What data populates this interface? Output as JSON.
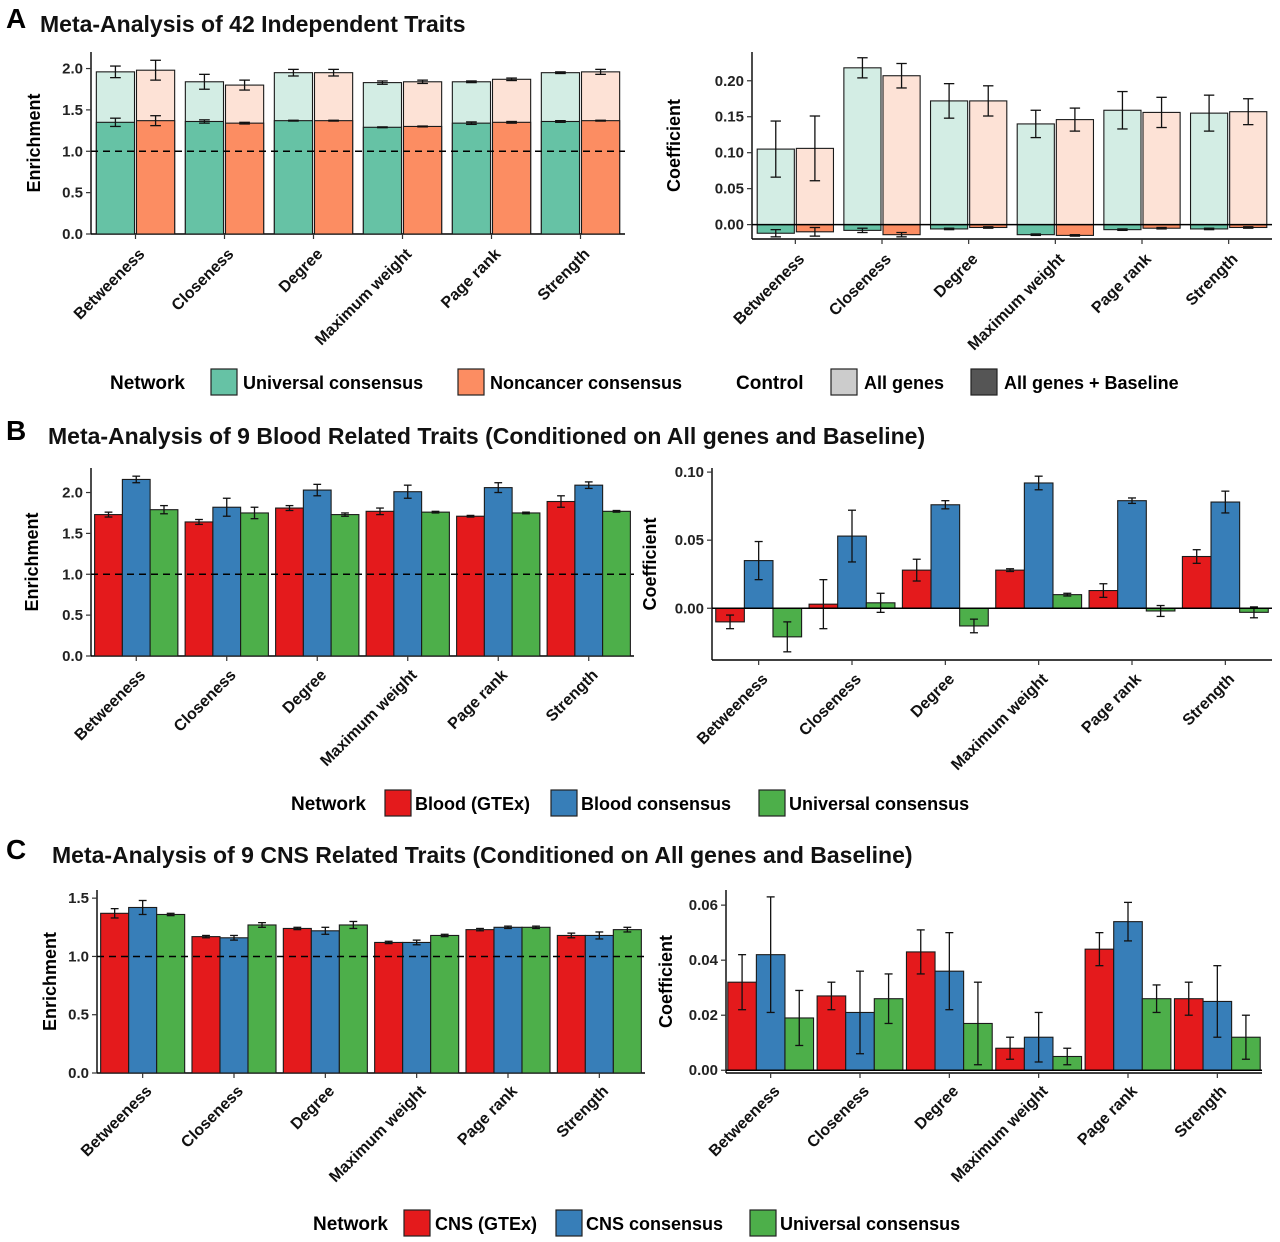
{
  "figure": {
    "panel_labels": [
      "A",
      "B",
      "C"
    ],
    "titles": {
      "A": "Meta-Analysis of 42 Independent Traits",
      "B": "Meta-Analysis of 9 Blood Related Traits (Conditioned on All genes and Baseline)",
      "C": "Meta-Analysis of 9 CNS Related Traits (Conditioned on All genes and Baseline)"
    }
  },
  "legends": {
    "A": {
      "network_title": "Network",
      "control_title": "Control",
      "network_items": [
        {
          "label": "Universal consensus",
          "color": "#66c2a5"
        },
        {
          "label": "Noncancer consensus",
          "color": "#fc8d62"
        }
      ],
      "control_items": [
        {
          "label": "All genes",
          "color": "#cccccc"
        },
        {
          "label": "All genes + Baseline",
          "color": "#555555"
        }
      ]
    },
    "B": {
      "title": "Network",
      "items": [
        {
          "label": "Blood (GTEx)",
          "color": "#e41a1c"
        },
        {
          "label": "Blood consensus",
          "color": "#377eb8"
        },
        {
          "label": "Universal consensus",
          "color": "#4daf4a"
        }
      ]
    },
    "C": {
      "title": "Network",
      "items": [
        {
          "label": "CNS (GTEx)",
          "color": "#e41a1c"
        },
        {
          "label": "CNS consensus",
          "color": "#377eb8"
        },
        {
          "label": "Universal consensus",
          "color": "#4daf4a"
        }
      ]
    }
  },
  "chart_data": [
    {
      "id": "A-left",
      "type": "bar",
      "title": "Meta-Analysis of 42 Independent Traits",
      "ylabel": "Enrichment",
      "xlabel": "",
      "ylim": [
        0,
        2.2
      ],
      "ticks": [
        0,
        0.5,
        1,
        1.5,
        2
      ],
      "tick_labels": [
        "0.0",
        "0.5",
        "1.0",
        "1.5",
        "2.0"
      ],
      "reference_line": 1,
      "layered": true,
      "categories": [
        "Betweeness",
        "Closeness",
        "Degree",
        "Maximum weight",
        "Page rank",
        "Strength"
      ],
      "series": [
        {
          "name": "Universal consensus",
          "color": "#66c2a5",
          "light": "#d3ede4",
          "all_genes": [
            1.96,
            1.84,
            1.95,
            1.83,
            1.84,
            1.95
          ],
          "all_genes_err": [
            0.07,
            0.09,
            0.04,
            0.02,
            0.01,
            0.01
          ],
          "baseline": [
            1.35,
            1.36,
            1.37,
            1.29,
            1.34,
            1.36
          ],
          "baseline_err": [
            0.05,
            0.02,
            0.005,
            0.005,
            0.015,
            0.01
          ]
        },
        {
          "name": "Noncancer consensus",
          "color": "#fc8d62",
          "light": "#fde2d6",
          "all_genes": [
            1.98,
            1.8,
            1.95,
            1.84,
            1.87,
            1.96
          ],
          "all_genes_err": [
            0.12,
            0.06,
            0.04,
            0.02,
            0.015,
            0.03
          ],
          "baseline": [
            1.37,
            1.34,
            1.37,
            1.3,
            1.35,
            1.37
          ],
          "baseline_err": [
            0.06,
            0.01,
            0.005,
            0.005,
            0.01,
            0.005
          ]
        }
      ]
    },
    {
      "id": "A-right",
      "type": "bar",
      "ylabel": "Coefficient",
      "xlabel": "",
      "ylim": [
        -0.02,
        0.24
      ],
      "ticks": [
        0,
        0.05,
        0.1,
        0.15,
        0.2
      ],
      "tick_labels": [
        "0.00",
        "0.05",
        "0.10",
        "0.15",
        "0.20"
      ],
      "reference_line": 0,
      "layered": true,
      "categories": [
        "Betweeness",
        "Closeness",
        "Degree",
        "Maximum weight",
        "Page rank",
        "Strength"
      ],
      "series": [
        {
          "name": "Universal consensus",
          "color": "#66c2a5",
          "light": "#d3ede4",
          "all_genes": [
            0.105,
            0.218,
            0.172,
            0.14,
            0.159,
            0.155
          ],
          "all_genes_err": [
            0.039,
            0.014,
            0.024,
            0.019,
            0.026,
            0.025
          ],
          "baseline": [
            -0.012,
            -0.008,
            -0.006,
            -0.014,
            -0.007,
            -0.006
          ],
          "baseline_err": [
            0.005,
            0.003,
            0.001,
            0.001,
            0.001,
            0.001
          ]
        },
        {
          "name": "Noncancer consensus",
          "color": "#fc8d62",
          "light": "#fde2d6",
          "all_genes": [
            0.106,
            0.207,
            0.172,
            0.146,
            0.156,
            0.157
          ],
          "all_genes_err": [
            0.045,
            0.017,
            0.021,
            0.016,
            0.021,
            0.018
          ],
          "baseline": [
            -0.01,
            -0.014,
            -0.004,
            -0.015,
            -0.005,
            -0.004
          ],
          "baseline_err": [
            0.006,
            0.003,
            0.001,
            0.001,
            0.001,
            0.001
          ]
        }
      ]
    },
    {
      "id": "B-left",
      "type": "bar",
      "ylabel": "Enrichment",
      "xlabel": "",
      "ylim": [
        0,
        2.3
      ],
      "ticks": [
        0,
        0.5,
        1,
        1.5,
        2
      ],
      "tick_labels": [
        "0.0",
        "0.5",
        "1.0",
        "1.5",
        "2.0"
      ],
      "reference_line": 1,
      "categories": [
        "Betweeness",
        "Closeness",
        "Degree",
        "Maximum weight",
        "Page rank",
        "Strength"
      ],
      "series": [
        {
          "name": "Blood (GTEx)",
          "color": "#e41a1c",
          "values": [
            1.73,
            1.64,
            1.81,
            1.77,
            1.71,
            1.89
          ],
          "err": [
            0.03,
            0.03,
            0.03,
            0.04,
            0.01,
            0.07
          ]
        },
        {
          "name": "Blood consensus",
          "color": "#377eb8",
          "values": [
            2.16,
            1.82,
            2.03,
            2.01,
            2.06,
            2.09
          ],
          "err": [
            0.04,
            0.11,
            0.07,
            0.08,
            0.06,
            0.04
          ]
        },
        {
          "name": "Universal consensus",
          "color": "#4daf4a",
          "values": [
            1.79,
            1.75,
            1.73,
            1.76,
            1.75,
            1.77
          ],
          "err": [
            0.05,
            0.07,
            0.02,
            0.01,
            0.01,
            0.01
          ]
        }
      ]
    },
    {
      "id": "B-right",
      "type": "bar",
      "ylabel": "Coefficient",
      "xlabel": "",
      "ylim": [
        -0.038,
        0.103
      ],
      "ticks": [
        0,
        0.05,
        0.1
      ],
      "tick_labels": [
        "0.00",
        "0.05",
        "0.10"
      ],
      "reference_line": 0,
      "categories": [
        "Betweeness",
        "Closeness",
        "Degree",
        "Maximum weight",
        "Page rank",
        "Strength"
      ],
      "series": [
        {
          "name": "Blood (GTEx)",
          "color": "#e41a1c",
          "values": [
            -0.01,
            0.003,
            0.028,
            0.028,
            0.013,
            0.038
          ],
          "err": [
            0.005,
            0.018,
            0.008,
            0.001,
            0.005,
            0.005
          ]
        },
        {
          "name": "Blood consensus",
          "color": "#377eb8",
          "values": [
            0.035,
            0.053,
            0.076,
            0.092,
            0.079,
            0.078
          ],
          "err": [
            0.014,
            0.019,
            0.003,
            0.005,
            0.002,
            0.008
          ]
        },
        {
          "name": "Universal consensus",
          "color": "#4daf4a",
          "values": [
            -0.021,
            0.004,
            -0.013,
            0.01,
            -0.002,
            -0.003
          ],
          "err": [
            0.011,
            0.007,
            0.005,
            0.001,
            0.004,
            0.004
          ]
        }
      ]
    },
    {
      "id": "C-left",
      "type": "bar",
      "ylabel": "Enrichment",
      "xlabel": "",
      "ylim": [
        0,
        1.57
      ],
      "ticks": [
        0,
        0.5,
        1,
        1.5
      ],
      "tick_labels": [
        "0.0",
        "0.5",
        "1.0",
        "1.5"
      ],
      "reference_line": 1,
      "categories": [
        "Betweeness",
        "Closeness",
        "Degree",
        "Maximum weight",
        "Page rank",
        "Strength"
      ],
      "series": [
        {
          "name": "CNS (GTEx)",
          "color": "#e41a1c",
          "values": [
            1.37,
            1.17,
            1.24,
            1.12,
            1.23,
            1.18
          ],
          "err": [
            0.04,
            0.01,
            0.01,
            0.01,
            0.01,
            0.02
          ]
        },
        {
          "name": "CNS consensus",
          "color": "#377eb8",
          "values": [
            1.42,
            1.16,
            1.22,
            1.12,
            1.25,
            1.18
          ],
          "err": [
            0.06,
            0.02,
            0.03,
            0.02,
            0.01,
            0.03
          ]
        },
        {
          "name": "Universal consensus",
          "color": "#4daf4a",
          "values": [
            1.36,
            1.27,
            1.27,
            1.18,
            1.25,
            1.23
          ],
          "err": [
            0.01,
            0.02,
            0.03,
            0.01,
            0.01,
            0.02
          ]
        }
      ]
    },
    {
      "id": "C-right",
      "type": "bar",
      "ylabel": "Coefficient",
      "xlabel": "",
      "ylim": [
        -0.001,
        0.0655
      ],
      "ticks": [
        0,
        0.02,
        0.04,
        0.06
      ],
      "tick_labels": [
        "0.00",
        "0.02",
        "0.04",
        "0.06"
      ],
      "reference_line": 0,
      "categories": [
        "Betweeness",
        "Closeness",
        "Degree",
        "Maximum weight",
        "Page rank",
        "Strength"
      ],
      "series": [
        {
          "name": "CNS (GTEx)",
          "color": "#e41a1c",
          "values": [
            0.032,
            0.027,
            0.043,
            0.008,
            0.044,
            0.026
          ],
          "err": [
            0.01,
            0.005,
            0.008,
            0.004,
            0.006,
            0.006
          ]
        },
        {
          "name": "CNS consensus",
          "color": "#377eb8",
          "values": [
            0.042,
            0.021,
            0.036,
            0.012,
            0.054,
            0.025
          ],
          "err": [
            0.021,
            0.015,
            0.014,
            0.009,
            0.007,
            0.013
          ]
        },
        {
          "name": "Universal consensus",
          "color": "#4daf4a",
          "values": [
            0.019,
            0.026,
            0.017,
            0.005,
            0.026,
            0.012
          ],
          "err": [
            0.01,
            0.009,
            0.015,
            0.003,
            0.005,
            0.008
          ]
        }
      ]
    }
  ]
}
